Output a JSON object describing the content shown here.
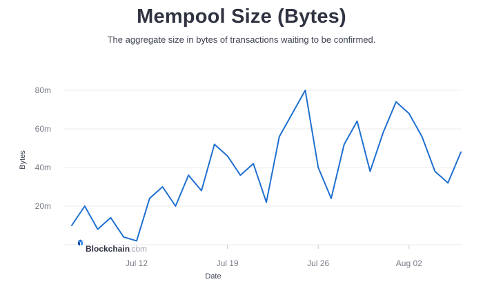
{
  "chart_data": {
    "type": "line",
    "title": "Mempool Size (Bytes)",
    "subtitle": "The aggregate size in bytes of transactions waiting to be confirmed.",
    "xlabel": "Date",
    "ylabel": "Bytes",
    "x_ticks": [
      "Jul 12",
      "Jul 19",
      "Jul 26",
      "Aug 02"
    ],
    "y_ticks": [
      {
        "value": 20000000,
        "label": "20m"
      },
      {
        "value": 40000000,
        "label": "40m"
      },
      {
        "value": 60000000,
        "label": "60m"
      },
      {
        "value": 80000000,
        "label": "80m"
      }
    ],
    "ylim": [
      0,
      80000000
    ],
    "grid": true,
    "color": "#1e6fd0",
    "watermark": {
      "brand": "Blockchain",
      "suffix": ".com"
    },
    "series": [
      {
        "x": [
          "2021-07-07",
          "2021-07-08",
          "2021-07-09",
          "2021-07-10",
          "2021-07-11",
          "2021-07-12",
          "2021-07-13",
          "2021-07-14",
          "2021-07-15",
          "2021-07-16",
          "2021-07-17",
          "2021-07-18",
          "2021-07-19",
          "2021-07-20",
          "2021-07-21",
          "2021-07-22",
          "2021-07-23",
          "2021-07-24",
          "2021-07-25",
          "2021-07-26",
          "2021-07-27",
          "2021-07-28",
          "2021-07-29",
          "2021-07-30",
          "2021-07-31",
          "2021-08-01",
          "2021-08-02",
          "2021-08-03",
          "2021-08-04",
          "2021-08-05",
          "2021-08-06"
        ],
        "values": [
          10000000,
          20000000,
          8000000,
          14000000,
          4000000,
          2000000,
          24000000,
          30000000,
          20000000,
          36000000,
          28000000,
          52000000,
          46000000,
          36000000,
          42000000,
          22000000,
          56000000,
          68000000,
          80000000,
          40000000,
          24000000,
          52000000,
          64000000,
          38000000,
          58000000,
          74000000,
          68000000,
          56000000,
          38000000,
          32000000,
          48000000
        ]
      }
    ]
  }
}
